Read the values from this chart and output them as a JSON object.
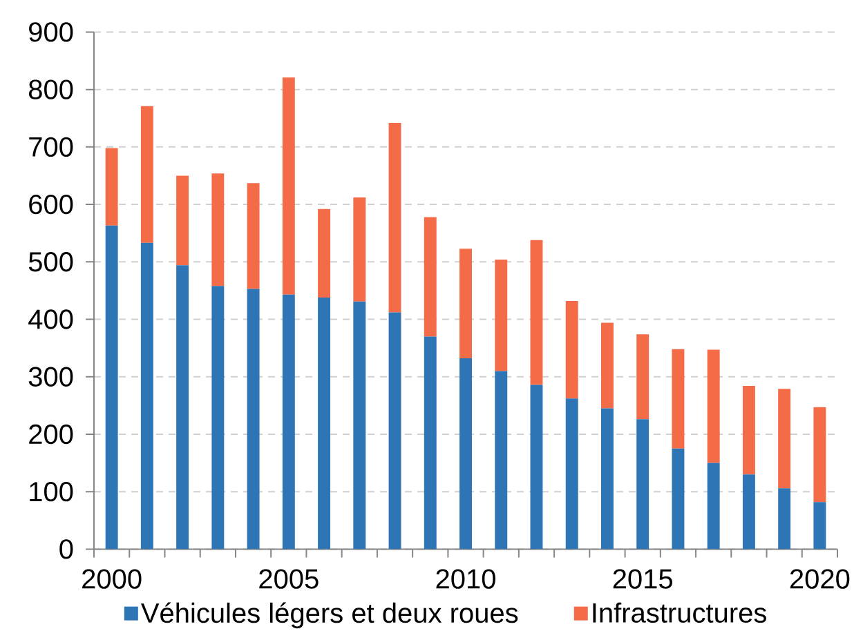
{
  "chart_data": {
    "type": "bar",
    "stacked": true,
    "categories": [
      "2000",
      null,
      null,
      null,
      null,
      "2005",
      null,
      null,
      null,
      null,
      "2010",
      null,
      null,
      null,
      null,
      "2015",
      null,
      null,
      null,
      null,
      "2020"
    ],
    "series": [
      {
        "name": "Véhicules légers et deux roues",
        "color": "#2e75b6",
        "values": [
          563,
          533,
          494,
          458,
          453,
          443,
          438,
          431,
          412,
          370,
          332,
          310,
          286,
          262,
          245,
          226,
          175,
          150,
          130,
          106,
          82
        ]
      },
      {
        "name": "Infrastructures",
        "color": "#f36c47",
        "values": [
          135,
          238,
          156,
          196,
          184,
          378,
          154,
          181,
          330,
          208,
          191,
          194,
          252,
          170,
          149,
          148,
          173,
          197,
          154,
          173,
          165
        ]
      }
    ],
    "ylim": [
      0,
      900
    ],
    "yticks": [
      0,
      100,
      200,
      300,
      400,
      500,
      600,
      700,
      800,
      900
    ],
    "grid": "y",
    "legend": "bottom"
  }
}
